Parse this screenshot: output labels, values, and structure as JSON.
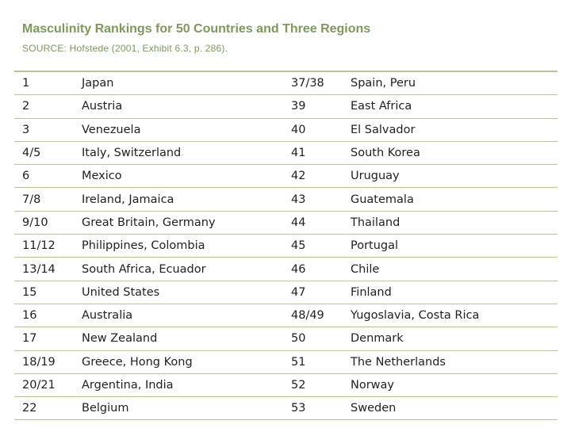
{
  "header": {
    "title": "Masculinity Rankings for 50 Countries and Three Regions",
    "source": "SOURCE: Hofstede (2001, Exhibit 6.3, p. 286)."
  },
  "rows": [
    {
      "rank_a": "1",
      "countries_a": "Japan",
      "rank_b": "37/38",
      "countries_b": "Spain, Peru"
    },
    {
      "rank_a": "2",
      "countries_a": "Austria",
      "rank_b": "39",
      "countries_b": "East Africa"
    },
    {
      "rank_a": "3",
      "countries_a": "Venezuela",
      "rank_b": "40",
      "countries_b": "El Salvador"
    },
    {
      "rank_a": "4/5",
      "countries_a": "Italy, Switzerland",
      "rank_b": "41",
      "countries_b": "South Korea"
    },
    {
      "rank_a": "6",
      "countries_a": "Mexico",
      "rank_b": "42",
      "countries_b": "Uruguay"
    },
    {
      "rank_a": "7/8",
      "countries_a": "Ireland, Jamaica",
      "rank_b": "43",
      "countries_b": "Guatemala"
    },
    {
      "rank_a": "9/10",
      "countries_a": "Great Britain, Germany",
      "rank_b": "44",
      "countries_b": "Thailand"
    },
    {
      "rank_a": "11/12",
      "countries_a": "Philippines, Colombia",
      "rank_b": "45",
      "countries_b": "Portugal"
    },
    {
      "rank_a": "13/14",
      "countries_a": "South Africa, Ecuador",
      "rank_b": "46",
      "countries_b": "Chile"
    },
    {
      "rank_a": "15",
      "countries_a": "United States",
      "rank_b": "47",
      "countries_b": "Finland"
    },
    {
      "rank_a": "16",
      "countries_a": "Australia",
      "rank_b": "48/49",
      "countries_b": "Yugoslavia, Costa Rica"
    },
    {
      "rank_a": "17",
      "countries_a": "New Zealand",
      "rank_b": "50",
      "countries_b": "Denmark"
    },
    {
      "rank_a": "18/19",
      "countries_a": "Greece, Hong Kong",
      "rank_b": "51",
      "countries_b": "The Netherlands"
    },
    {
      "rank_a": "20/21",
      "countries_a": "Argentina, India",
      "rank_b": "52",
      "countries_b": "Norway"
    },
    {
      "rank_a": "22",
      "countries_a": "Belgium",
      "rank_b": "53",
      "countries_b": "Sweden"
    }
  ],
  "colors": {
    "heading_text": "#7d9a5a",
    "rule_lines": "#b5c79a",
    "body_text": "#222222"
  }
}
